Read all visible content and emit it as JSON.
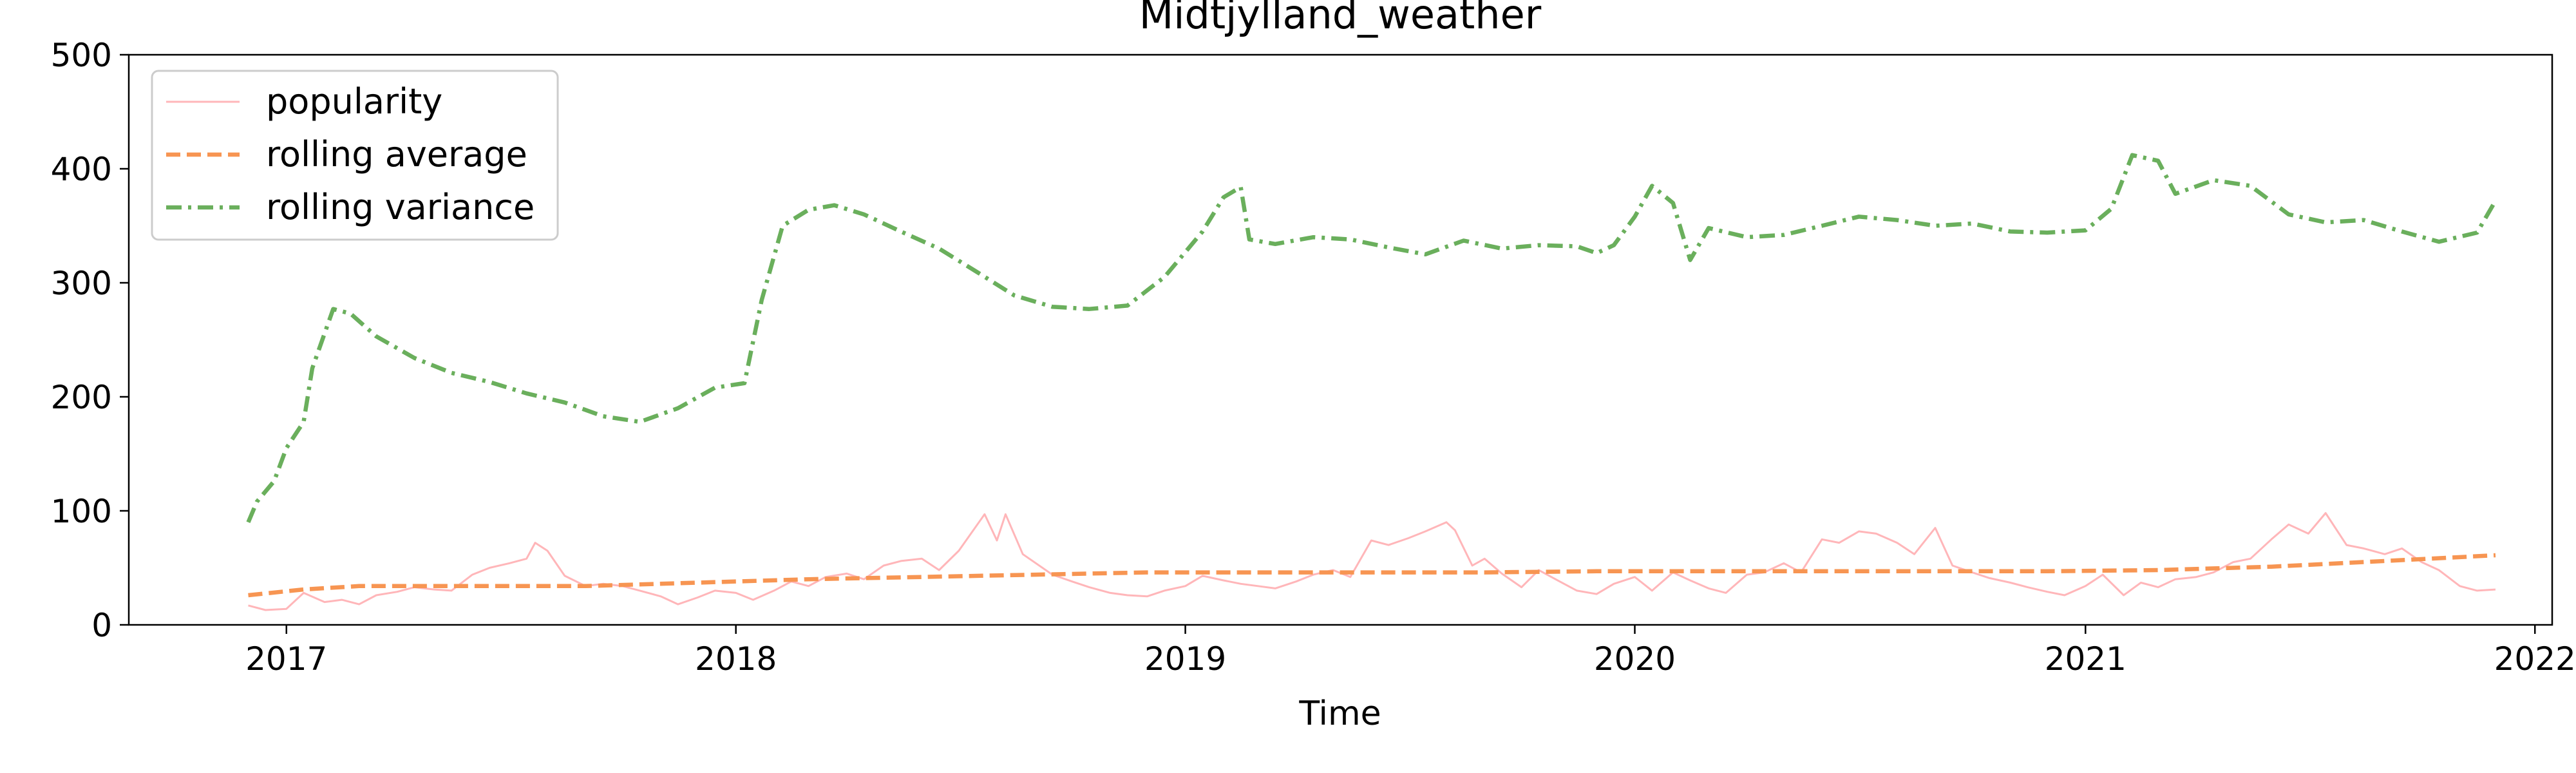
{
  "chart_data": {
    "type": "line",
    "title": "Midtjylland_weather",
    "xlabel": "Time",
    "ylabel": "",
    "ylim": [
      0,
      500
    ],
    "xlim": [
      "2016-08-26",
      "2022-01-15"
    ],
    "x_ticks": [
      "2017",
      "2018",
      "2019",
      "2020",
      "2021",
      "2022"
    ],
    "y_ticks": [
      "0",
      "100",
      "200",
      "300",
      "400",
      "500"
    ],
    "grid": false,
    "legend_position": "upper-left",
    "series": [
      {
        "name": "popularity",
        "color": "#ffb6b9",
        "style": "solid",
        "points": [
          [
            "2016-12-01",
            17
          ],
          [
            "2016-12-15",
            13
          ],
          [
            "2017-01-01",
            14
          ],
          [
            "2017-01-15",
            28
          ],
          [
            "2017-02-01",
            20
          ],
          [
            "2017-02-15",
            22
          ],
          [
            "2017-03-01",
            18
          ],
          [
            "2017-03-15",
            26
          ],
          [
            "2017-04-01",
            29
          ],
          [
            "2017-04-15",
            33
          ],
          [
            "2017-05-01",
            31
          ],
          [
            "2017-05-15",
            30
          ],
          [
            "2017-06-01",
            44
          ],
          [
            "2017-06-15",
            50
          ],
          [
            "2017-07-01",
            54
          ],
          [
            "2017-07-15",
            58
          ],
          [
            "2017-07-22",
            72
          ],
          [
            "2017-08-01",
            65
          ],
          [
            "2017-08-15",
            43
          ],
          [
            "2017-09-01",
            34
          ],
          [
            "2017-09-15",
            36
          ],
          [
            "2017-10-01",
            34
          ],
          [
            "2017-10-15",
            30
          ],
          [
            "2017-11-01",
            25
          ],
          [
            "2017-11-15",
            18
          ],
          [
            "2017-12-01",
            24
          ],
          [
            "2017-12-15",
            30
          ],
          [
            "2018-01-01",
            28
          ],
          [
            "2018-01-15",
            22
          ],
          [
            "2018-02-01",
            30
          ],
          [
            "2018-02-15",
            38
          ],
          [
            "2018-03-01",
            34
          ],
          [
            "2018-03-15",
            42
          ],
          [
            "2018-04-01",
            45
          ],
          [
            "2018-04-15",
            40
          ],
          [
            "2018-05-01",
            52
          ],
          [
            "2018-05-15",
            56
          ],
          [
            "2018-06-01",
            58
          ],
          [
            "2018-06-15",
            48
          ],
          [
            "2018-07-01",
            65
          ],
          [
            "2018-07-22",
            97
          ],
          [
            "2018-08-01",
            74
          ],
          [
            "2018-08-08",
            97
          ],
          [
            "2018-08-22",
            62
          ],
          [
            "2018-09-15",
            44
          ],
          [
            "2018-10-01",
            38
          ],
          [
            "2018-10-15",
            33
          ],
          [
            "2018-11-01",
            28
          ],
          [
            "2018-11-15",
            26
          ],
          [
            "2018-12-01",
            25
          ],
          [
            "2018-12-15",
            30
          ],
          [
            "2019-01-01",
            34
          ],
          [
            "2019-01-15",
            43
          ],
          [
            "2019-02-01",
            39
          ],
          [
            "2019-02-15",
            36
          ],
          [
            "2019-03-01",
            34
          ],
          [
            "2019-03-15",
            32
          ],
          [
            "2019-04-01",
            38
          ],
          [
            "2019-04-15",
            44
          ],
          [
            "2019-05-01",
            48
          ],
          [
            "2019-05-15",
            42
          ],
          [
            "2019-06-01",
            74
          ],
          [
            "2019-06-15",
            70
          ],
          [
            "2019-07-01",
            76
          ],
          [
            "2019-07-15",
            82
          ],
          [
            "2019-08-01",
            90
          ],
          [
            "2019-08-08",
            83
          ],
          [
            "2019-08-22",
            52
          ],
          [
            "2019-09-01",
            58
          ],
          [
            "2019-09-15",
            45
          ],
          [
            "2019-10-01",
            33
          ],
          [
            "2019-10-15",
            48
          ],
          [
            "2019-11-01",
            38
          ],
          [
            "2019-11-15",
            30
          ],
          [
            "2019-12-01",
            27
          ],
          [
            "2019-12-15",
            36
          ],
          [
            "2020-01-01",
            42
          ],
          [
            "2020-01-15",
            30
          ],
          [
            "2020-02-01",
            46
          ],
          [
            "2020-02-15",
            39
          ],
          [
            "2020-03-01",
            32
          ],
          [
            "2020-03-15",
            28
          ],
          [
            "2020-04-01",
            44
          ],
          [
            "2020-04-15",
            46
          ],
          [
            "2020-05-01",
            54
          ],
          [
            "2020-05-15",
            46
          ],
          [
            "2020-06-01",
            75
          ],
          [
            "2020-06-15",
            72
          ],
          [
            "2020-07-01",
            82
          ],
          [
            "2020-07-15",
            80
          ],
          [
            "2020-08-01",
            72
          ],
          [
            "2020-08-15",
            62
          ],
          [
            "2020-09-01",
            85
          ],
          [
            "2020-09-15",
            52
          ],
          [
            "2020-10-01",
            46
          ],
          [
            "2020-10-15",
            41
          ],
          [
            "2020-11-01",
            37
          ],
          [
            "2020-11-15",
            33
          ],
          [
            "2020-12-01",
            29
          ],
          [
            "2020-12-15",
            26
          ],
          [
            "2021-01-01",
            34
          ],
          [
            "2021-01-15",
            44
          ],
          [
            "2021-02-01",
            26
          ],
          [
            "2021-02-15",
            37
          ],
          [
            "2021-03-01",
            33
          ],
          [
            "2021-03-15",
            40
          ],
          [
            "2021-04-01",
            42
          ],
          [
            "2021-04-15",
            46
          ],
          [
            "2021-05-01",
            55
          ],
          [
            "2021-05-15",
            58
          ],
          [
            "2021-06-01",
            75
          ],
          [
            "2021-06-15",
            88
          ],
          [
            "2021-07-01",
            80
          ],
          [
            "2021-07-15",
            98
          ],
          [
            "2021-08-01",
            70
          ],
          [
            "2021-08-15",
            67
          ],
          [
            "2021-09-01",
            62
          ],
          [
            "2021-09-15",
            67
          ],
          [
            "2021-10-01",
            55
          ],
          [
            "2021-10-15",
            48
          ],
          [
            "2021-11-01",
            34
          ],
          [
            "2021-11-15",
            30
          ],
          [
            "2021-11-30",
            31
          ]
        ]
      },
      {
        "name": "rolling average",
        "color": "#f79552",
        "style": "dashed",
        "points": [
          [
            "2016-12-01",
            26
          ],
          [
            "2017-01-15",
            31
          ],
          [
            "2017-03-01",
            34
          ],
          [
            "2017-06-01",
            34
          ],
          [
            "2017-09-01",
            34
          ],
          [
            "2017-12-01",
            37
          ],
          [
            "2018-03-01",
            40
          ],
          [
            "2018-06-01",
            42
          ],
          [
            "2018-09-01",
            44
          ],
          [
            "2018-12-01",
            46
          ],
          [
            "2019-03-01",
            46
          ],
          [
            "2019-06-01",
            46
          ],
          [
            "2019-09-01",
            46
          ],
          [
            "2019-12-01",
            47
          ],
          [
            "2020-03-01",
            47
          ],
          [
            "2020-06-01",
            47
          ],
          [
            "2020-09-01",
            47
          ],
          [
            "2020-12-01",
            47
          ],
          [
            "2021-03-01",
            48
          ],
          [
            "2021-06-01",
            51
          ],
          [
            "2021-09-01",
            56
          ],
          [
            "2021-11-30",
            61
          ]
        ]
      },
      {
        "name": "rolling variance",
        "color": "#6aaf5c",
        "style": "dashdot",
        "points": [
          [
            "2016-12-01",
            90
          ],
          [
            "2016-12-08",
            108
          ],
          [
            "2016-12-22",
            126
          ],
          [
            "2017-01-01",
            155
          ],
          [
            "2017-01-15",
            178
          ],
          [
            "2017-01-22",
            225
          ],
          [
            "2017-02-08",
            277
          ],
          [
            "2017-02-22",
            273
          ],
          [
            "2017-03-15",
            253
          ],
          [
            "2017-04-15",
            234
          ],
          [
            "2017-05-15",
            221
          ],
          [
            "2017-06-15",
            213
          ],
          [
            "2017-07-15",
            203
          ],
          [
            "2017-08-15",
            195
          ],
          [
            "2017-09-15",
            183
          ],
          [
            "2017-10-15",
            178
          ],
          [
            "2017-11-15",
            190
          ],
          [
            "2017-12-15",
            208
          ],
          [
            "2018-01-08",
            212
          ],
          [
            "2018-01-22",
            285
          ],
          [
            "2018-02-08",
            350
          ],
          [
            "2018-03-01",
            364
          ],
          [
            "2018-03-22",
            368
          ],
          [
            "2018-04-15",
            360
          ],
          [
            "2018-05-15",
            345
          ],
          [
            "2018-06-15",
            330
          ],
          [
            "2018-07-15",
            310
          ],
          [
            "2018-08-15",
            289
          ],
          [
            "2018-09-15",
            279
          ],
          [
            "2018-10-15",
            277
          ],
          [
            "2018-11-15",
            280
          ],
          [
            "2018-12-15",
            305
          ],
          [
            "2019-01-15",
            345
          ],
          [
            "2019-02-01",
            375
          ],
          [
            "2019-02-15",
            384
          ],
          [
            "2019-02-22",
            338
          ],
          [
            "2019-03-15",
            334
          ],
          [
            "2019-04-15",
            340
          ],
          [
            "2019-05-15",
            338
          ],
          [
            "2019-06-15",
            331
          ],
          [
            "2019-07-15",
            325
          ],
          [
            "2019-08-15",
            337
          ],
          [
            "2019-09-15",
            330
          ],
          [
            "2019-10-15",
            333
          ],
          [
            "2019-11-15",
            332
          ],
          [
            "2019-12-01",
            326
          ],
          [
            "2019-12-15",
            333
          ],
          [
            "2020-01-01",
            358
          ],
          [
            "2020-01-15",
            385
          ],
          [
            "2020-02-01",
            370
          ],
          [
            "2020-02-15",
            320
          ],
          [
            "2020-03-01",
            348
          ],
          [
            "2020-04-01",
            340
          ],
          [
            "2020-05-01",
            342
          ],
          [
            "2020-06-01",
            350
          ],
          [
            "2020-07-01",
            358
          ],
          [
            "2020-08-01",
            355
          ],
          [
            "2020-09-01",
            350
          ],
          [
            "2020-10-01",
            352
          ],
          [
            "2020-11-01",
            345
          ],
          [
            "2020-12-01",
            344
          ],
          [
            "2021-01-01",
            346
          ],
          [
            "2021-01-22",
            365
          ],
          [
            "2021-02-08",
            412
          ],
          [
            "2021-03-01",
            407
          ],
          [
            "2021-03-15",
            378
          ],
          [
            "2021-04-15",
            390
          ],
          [
            "2021-05-15",
            385
          ],
          [
            "2021-06-15",
            360
          ],
          [
            "2021-07-15",
            353
          ],
          [
            "2021-08-15",
            355
          ],
          [
            "2021-09-15",
            345
          ],
          [
            "2021-10-15",
            336
          ],
          [
            "2021-11-15",
            344
          ],
          [
            "2021-11-30",
            372
          ]
        ]
      }
    ]
  }
}
